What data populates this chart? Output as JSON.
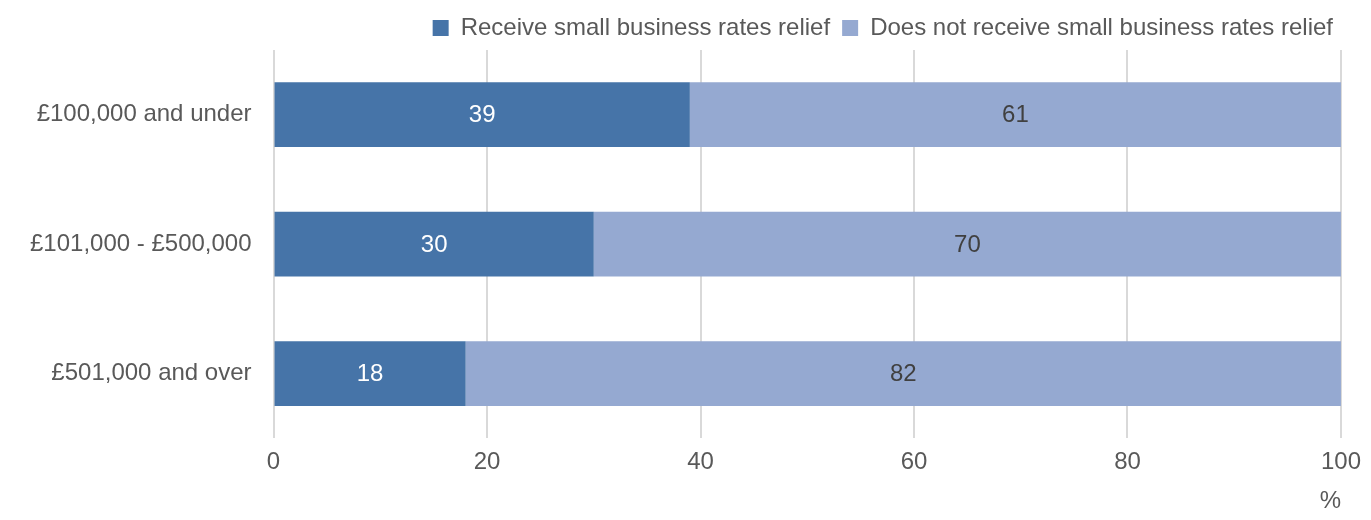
{
  "chart_data": {
    "type": "bar",
    "orientation": "horizontal",
    "stacked": true,
    "categories": [
      "£100,000 and under",
      "£101,000 - £500,000",
      "£501,000 and over"
    ],
    "series": [
      {
        "name": "Receive small business rates relief",
        "color": "#4674a8",
        "values": [
          39,
          30,
          18
        ]
      },
      {
        "name": "Does not receive small business rates relief",
        "color": "#95a9d1",
        "values": [
          61,
          70,
          82
        ]
      }
    ],
    "xlim": [
      0,
      100
    ],
    "xticks": [
      0,
      20,
      40,
      60,
      80,
      100
    ],
    "xlabel": "%",
    "grid": "x",
    "legend": "top right",
    "data_labels": true
  }
}
